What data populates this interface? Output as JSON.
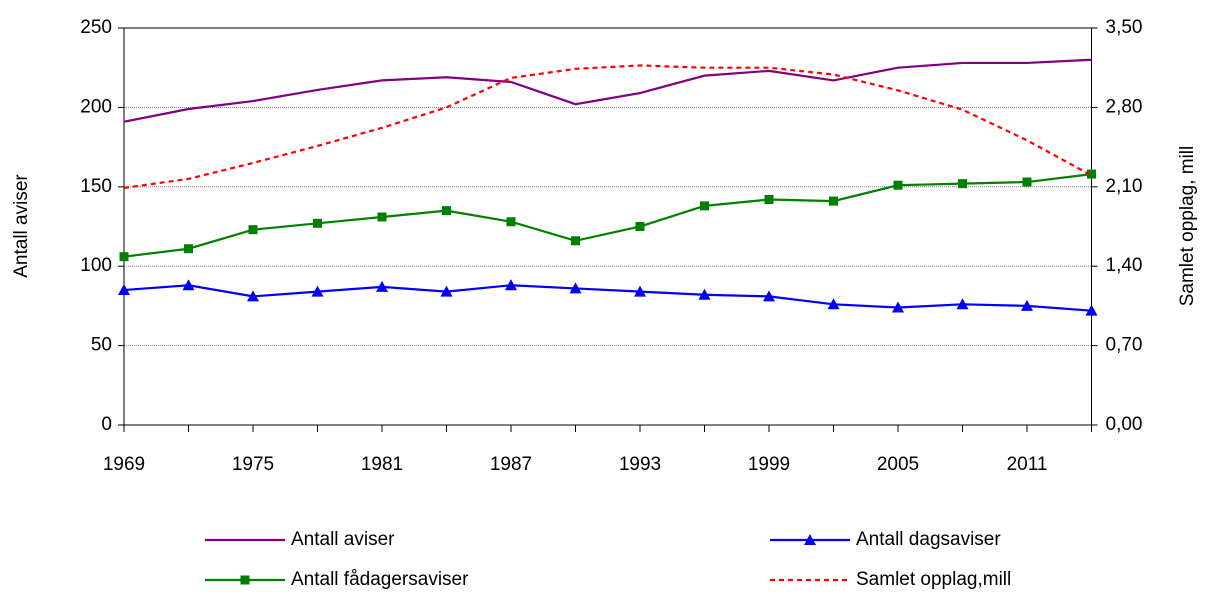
{
  "chart_data": {
    "type": "line",
    "y_label": "Antall aviser",
    "y2_label": "Samlet opplag, mill",
    "x": [
      1969,
      1972,
      1975,
      1978,
      1981,
      1984,
      1987,
      1990,
      1993,
      1996,
      1999,
      2002,
      2005,
      2008,
      2011,
      2014
    ],
    "xlim": [
      1969,
      2014
    ],
    "xticks": [
      1969,
      1975,
      1981,
      1987,
      1993,
      1999,
      2005,
      2011
    ],
    "ylim": [
      0,
      250
    ],
    "yticks": [
      0,
      50,
      100,
      150,
      200,
      250
    ],
    "y2lim": [
      0,
      3.5
    ],
    "y2ticks": [
      {
        "value": 0,
        "label": "0,00"
      },
      {
        "value": 0.7,
        "label": "0,70"
      },
      {
        "value": 1.4,
        "label": "1,40"
      },
      {
        "value": 2.1,
        "label": "2,10"
      },
      {
        "value": 2.8,
        "label": "2,80"
      },
      {
        "value": 3.5,
        "label": "3,50"
      }
    ],
    "grid": true,
    "series": [
      {
        "name": "Antall aviser",
        "color": "#800080",
        "marker": "none",
        "values": [
          191,
          199,
          204,
          211,
          217,
          219,
          216,
          202,
          209,
          220,
          223,
          217,
          225,
          228,
          228,
          230
        ]
      },
      {
        "name": "Antall dagsaviser",
        "color": "#0000ff",
        "marker": "triangle",
        "values": [
          85,
          88,
          81,
          84,
          87,
          84,
          88,
          86,
          84,
          82,
          81,
          76,
          74,
          76,
          75,
          72
        ]
      },
      {
        "name": "Antall fådagersaviser",
        "color": "#008000",
        "marker": "square",
        "values": [
          106,
          111,
          123,
          127,
          131,
          135,
          128,
          116,
          125,
          138,
          142,
          141,
          151,
          152,
          153,
          158
        ]
      },
      {
        "name": "Samlet opplag,mill",
        "color": "#ff0000",
        "marker": "none",
        "dashed": true,
        "axis": "y2",
        "values": [
          2.09,
          2.17,
          2.31,
          2.46,
          2.62,
          2.8,
          3.06,
          3.14,
          3.17,
          3.15,
          3.15,
          3.09,
          2.95,
          2.78,
          2.51,
          2.2
        ]
      }
    ]
  }
}
